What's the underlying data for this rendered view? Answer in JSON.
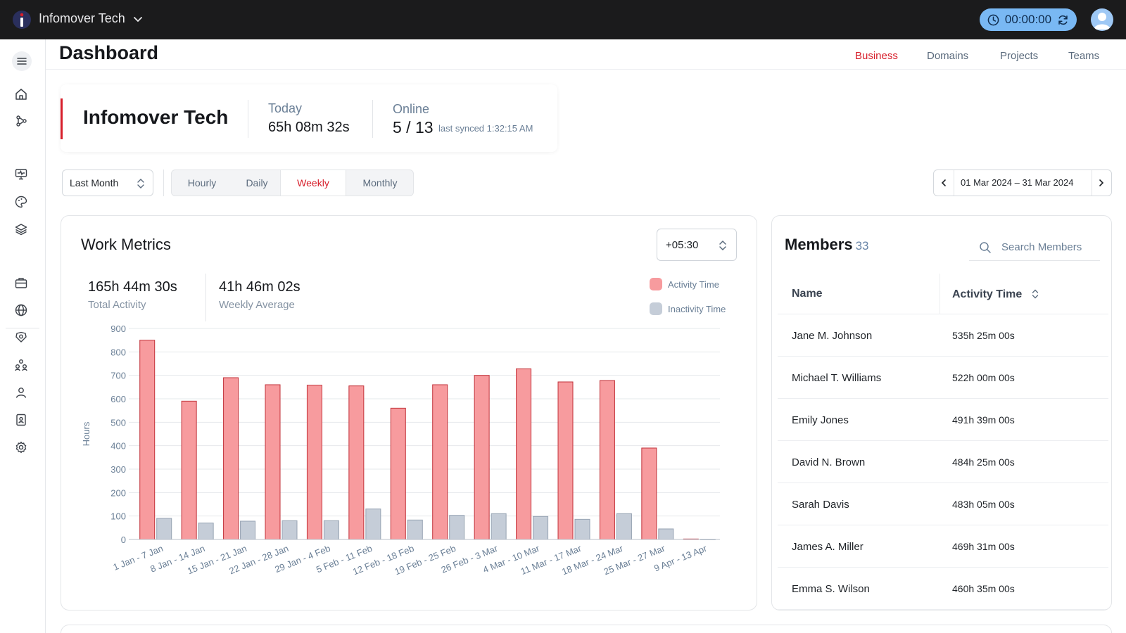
{
  "topbar": {
    "org_name": "Infomover Tech",
    "timer": "00:00:00"
  },
  "header": {
    "title": "Dashboard",
    "tabs": [
      {
        "label": "Business",
        "active": true
      },
      {
        "label": "Domains",
        "active": false
      },
      {
        "label": "Projects",
        "active": false
      },
      {
        "label": "Teams",
        "active": false
      }
    ]
  },
  "org_card": {
    "name": "Infomover Tech",
    "today_label": "Today",
    "today_value": "65h 08m 32s",
    "online_label": "Online",
    "online_value": "5 / 13",
    "synced": "last synced 1:32:15 AM"
  },
  "filters": {
    "period": "Last Month",
    "granularity": [
      {
        "label": "Hourly",
        "active": false
      },
      {
        "label": "Daily",
        "active": false
      },
      {
        "label": "Weekly",
        "active": true
      },
      {
        "label": "Monthly",
        "active": false
      }
    ],
    "date_range": "01 Mar 2024 – 31 Mar 2024"
  },
  "work_metrics": {
    "title": "Work Metrics",
    "timezone": "+05:30",
    "total_activity_value": "165h 44m 30s",
    "total_activity_label": "Total Activity",
    "weekly_average_value": "41h 46m 02s",
    "weekly_average_label": "Weekly Average"
  },
  "chart_data": {
    "type": "bar",
    "ylabel": "Hours",
    "xlabel": "",
    "ylim": [
      0,
      900
    ],
    "yticks": [
      0,
      100,
      200,
      300,
      400,
      500,
      600,
      700,
      800,
      900
    ],
    "grid": true,
    "legend_position": "top-right",
    "categories": [
      "1 Jan - 7 Jan",
      "8 Jan - 14 Jan",
      "15 Jan - 21 Jan",
      "22 Jan - 28 Jan",
      "29 Jan - 4 Feb",
      "5 Feb - 11 Feb",
      "12 Feb - 18 Feb",
      "19 Feb - 25 Feb",
      "26 Feb - 3 Mar",
      "4 Mar - 10 Mar",
      "11 Mar - 17 Mar",
      "18 Mar - 24 Mar",
      "25 Mar - 27 Mar",
      "9 Apr - 13 Apr"
    ],
    "series": [
      {
        "name": "Activity Time",
        "color": "#f79b9e",
        "stroke": "#c2323a",
        "values": [
          850,
          590,
          690,
          660,
          658,
          655,
          560,
          660,
          700,
          728,
          672,
          678,
          390,
          2
        ]
      },
      {
        "name": "Inactivity Time",
        "color": "#c5cdd8",
        "stroke": "#97a3b3",
        "values": [
          90,
          70,
          78,
          80,
          80,
          130,
          83,
          103,
          110,
          98,
          86,
          110,
          45,
          0
        ]
      }
    ]
  },
  "members": {
    "title": "Members",
    "count": "33",
    "search_placeholder": "Search Members",
    "columns": {
      "name": "Name",
      "activity": "Activity Time"
    },
    "rows": [
      {
        "name": "Jane M. Johnson",
        "time": "535h 25m 00s"
      },
      {
        "name": "Michael T. Williams",
        "time": "522h 00m 00s"
      },
      {
        "name": "Emily Jones",
        "time": "491h 39m 00s"
      },
      {
        "name": "David N. Brown",
        "time": "484h 25m 00s"
      },
      {
        "name": "Sarah Davis",
        "time": "483h 05m 00s"
      },
      {
        "name": "James A. Miller",
        "time": "469h 31m 00s"
      },
      {
        "name": "Emma S. Wilson",
        "time": "460h 35m 00s"
      }
    ]
  }
}
